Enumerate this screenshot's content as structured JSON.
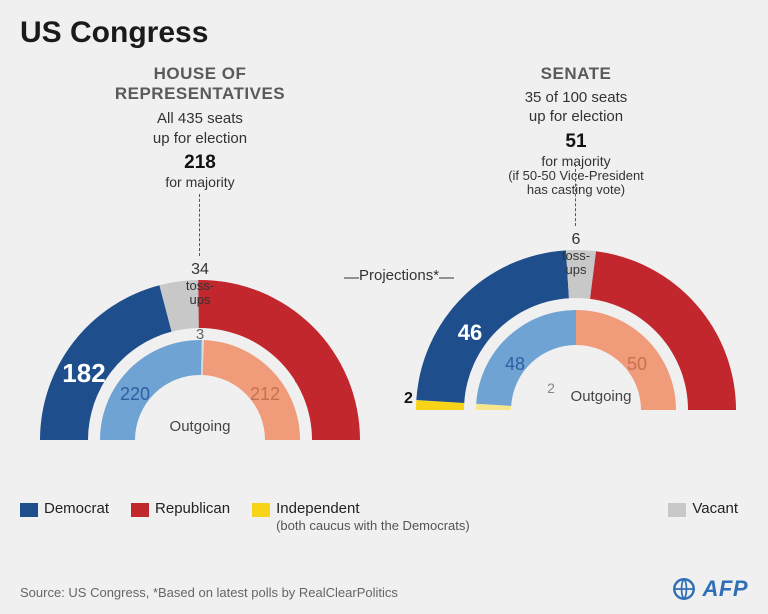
{
  "title": "US Congress",
  "projections_label": "Projections*",
  "colors": {
    "democrat": "#1f4e8c",
    "republican": "#c1272d",
    "independent": "#f7d417",
    "vacant": "#c8c8c8",
    "democrat_light": "#6fa3d4",
    "republican_light": "#f09b7a",
    "independent_light": "#f7e68a",
    "vacant_light": "#dcdcdc",
    "background": "#f0f0f0",
    "text": "#1a1a1a",
    "muted": "#5a5a5a"
  },
  "house": {
    "title_line1": "HOUSE OF",
    "title_line2": "REPRESENTATIVES",
    "seats_line": "All 435 seats",
    "seats_sub": "up for election",
    "majority_num": "218",
    "majority_lbl": "for majority",
    "outer": {
      "democrat": 182,
      "tossups": 34,
      "republican": 219,
      "total": 435,
      "tossup_label": "toss-ups"
    },
    "inner": {
      "democrat": 220,
      "vacant": 3,
      "republican": 212,
      "total": 435
    },
    "outgoing_label": "Outgoing"
  },
  "senate": {
    "title": "SENATE",
    "seats_line": "35 of 100 seats",
    "seats_sub": "up for election",
    "majority_num": "51",
    "majority_lbl": "for majority",
    "majority_note1": "(if 50-50 Vice-President",
    "majority_note2": "has casting vote)",
    "outer": {
      "independent": 2,
      "democrat": 46,
      "tossups": 6,
      "republican": 46,
      "total": 100,
      "tossup_label": "toss-ups"
    },
    "inner": {
      "independent": 2,
      "democrat": 48,
      "republican": 50,
      "total": 100
    },
    "outgoing_label": "Outgoing"
  },
  "legend": {
    "democrat": "Democrat",
    "republican": "Republican",
    "independent": "Independent",
    "independent_sub": "(both caucus with the Democrats)",
    "vacant": "Vacant"
  },
  "source": "Source: US Congress, *Based on latest polls by RealClearPolitics",
  "brand": "AFP"
}
